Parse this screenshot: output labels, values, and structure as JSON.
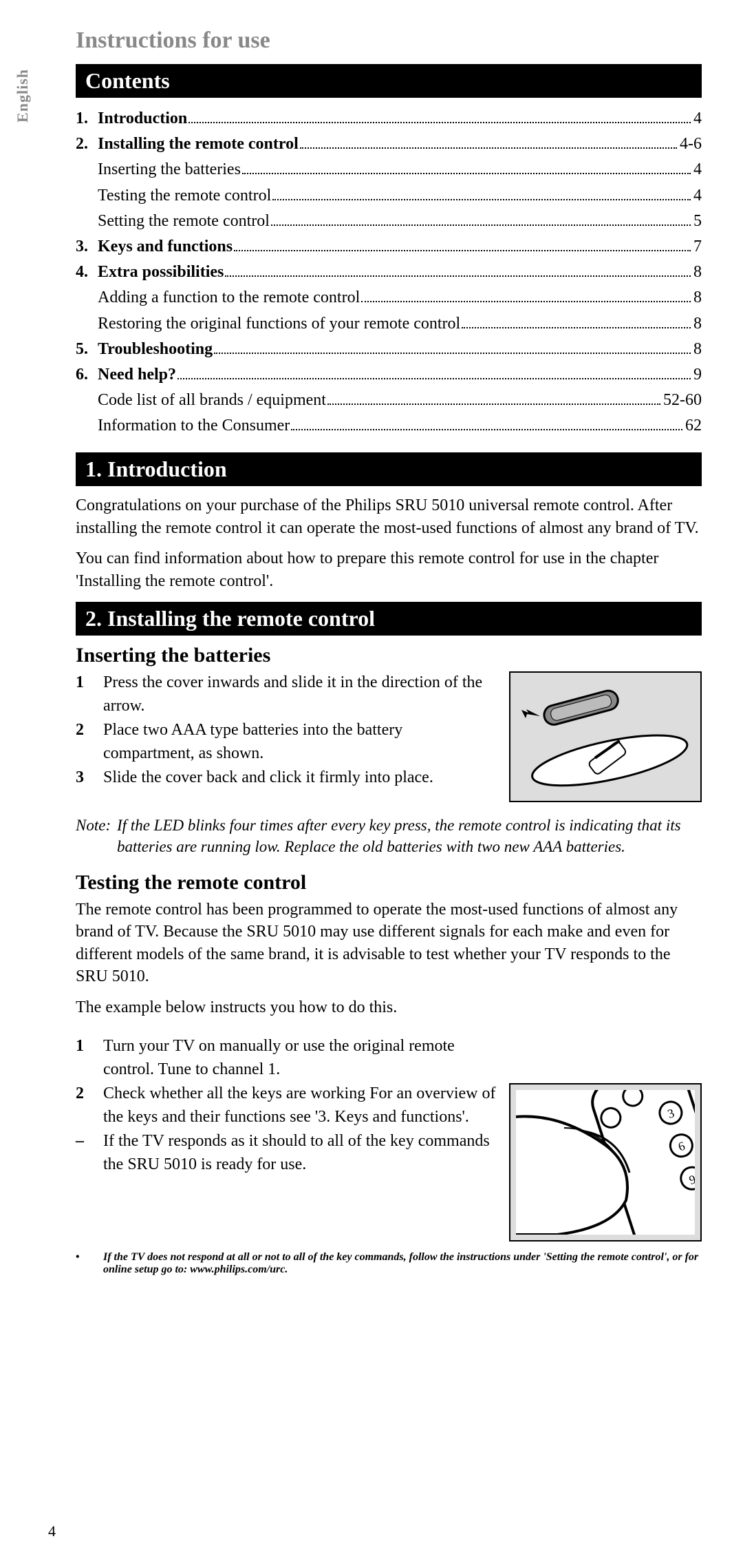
{
  "lang": "English",
  "page_title": "Instructions for use",
  "headers": {
    "contents": "Contents",
    "intro": "1. Introduction",
    "install": "2. Installing the remote control"
  },
  "toc": [
    {
      "n": "1.",
      "label": "Introduction",
      "page": "4",
      "bold": true
    },
    {
      "n": "2.",
      "label": "Installing the remote control",
      "page": "4-6",
      "bold": true
    },
    {
      "n": "",
      "label": "Inserting the batteries",
      "page": "4",
      "bold": false
    },
    {
      "n": "",
      "label": "Testing the remote control",
      "page": "4",
      "bold": false
    },
    {
      "n": "",
      "label": "Setting the remote control",
      "page": "5",
      "bold": false
    },
    {
      "n": "3.",
      "label": "Keys and functions",
      "page": "7",
      "bold": true
    },
    {
      "n": "4.",
      "label": "Extra possibilities",
      "page": "8",
      "bold": true
    },
    {
      "n": "",
      "label": "Adding a function to the remote control",
      "page": "8",
      "bold": false
    },
    {
      "n": "",
      "label": "Restoring the original functions of your remote control",
      "page": "8",
      "bold": false
    },
    {
      "n": "5.",
      "label": "Troubleshooting",
      "page": "8",
      "bold": true
    },
    {
      "n": "6.",
      "label": "Need help?",
      "page": "9",
      "bold": true
    },
    {
      "n": "",
      "label": "Code list of all brands / equipment",
      "page": "52-60",
      "bold": false
    },
    {
      "n": "",
      "label": "Information to the Consumer",
      "page": "62",
      "bold": false
    }
  ],
  "intro_p1": "Congratulations on your purchase of the Philips SRU 5010 universal remote control. After installing the remote control it can operate the most-used functions of almost any brand of TV.",
  "intro_p2": "You can find information about how to prepare this remote control for use in the chapter 'Installing the remote control'.",
  "sub_insert": "Inserting the batteries",
  "insert_steps": [
    {
      "n": "1",
      "t": "Press the cover inwards and slide it in the direction of the arrow."
    },
    {
      "n": "2",
      "t": "Place two AAA type batteries into the battery compartment, as shown."
    },
    {
      "n": "3",
      "t": "Slide the cover back and click it firmly into place."
    }
  ],
  "note_label": "Note:",
  "note_text": "If the LED blinks four times after every key press, the remote control is indicating that its batteries are running low. Replace the old batteries with two new AAA batteries.",
  "sub_test": "Testing the remote control",
  "test_p1": "The remote control has been programmed to operate the most-used functions of almost any brand of TV. Because the SRU 5010 may use different signals for each make and even for different models of the same brand, it is advisable to test whether your TV responds to the SRU 5010.",
  "test_p2": "The example below instructs you how to do this.",
  "test_steps": [
    {
      "n": "1",
      "t": "Turn your TV on manually or use the original remote control. Tune to channel 1."
    },
    {
      "n": "2",
      "t": "Check whether all the keys are working For an overview of the keys and their functions see '3. Keys and functions'."
    },
    {
      "n": "–",
      "t": "If the TV responds as it should to all of the key commands the SRU 5010 is ready for use."
    }
  ],
  "test_bullet": "If the TV does not respond at all or not to all of the key commands, follow the instructions under 'Setting the remote control', or for online setup go to: www.philips.com/urc.",
  "page_number": "4"
}
